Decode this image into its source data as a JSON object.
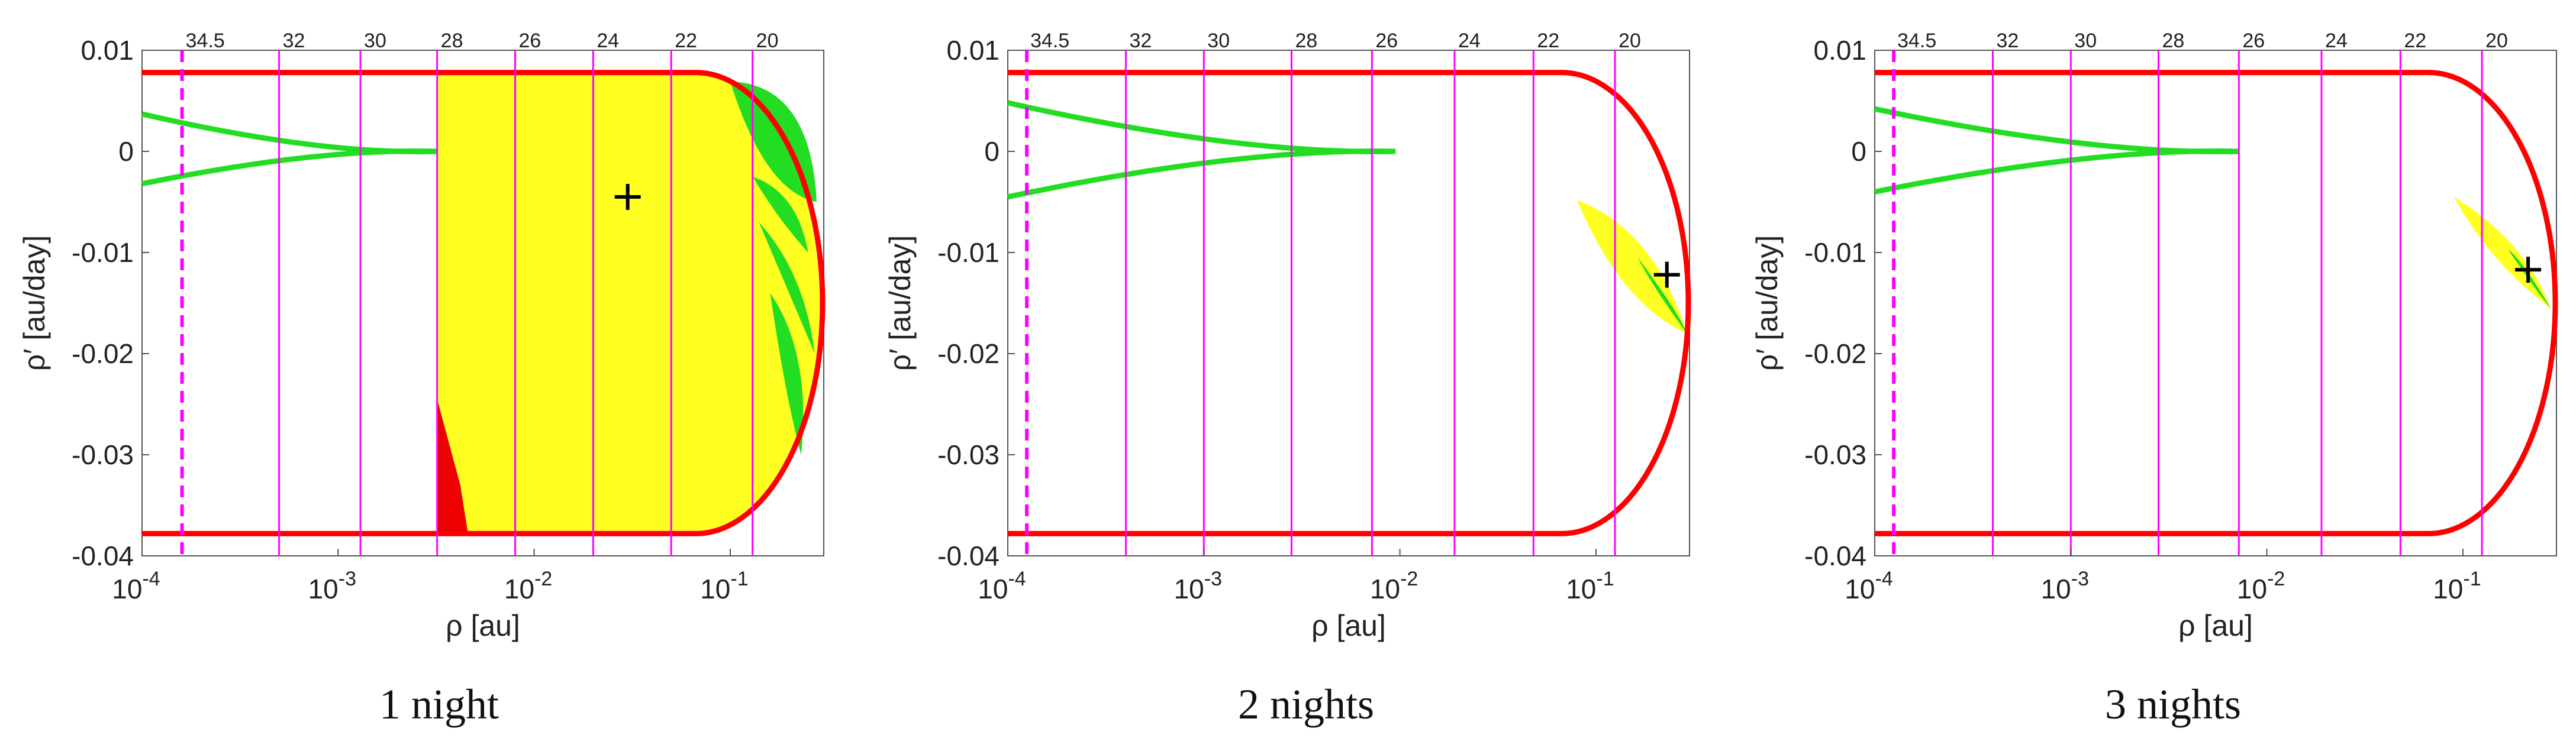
{
  "colors": {
    "boundary": "#ff0000",
    "region_yellow": "#ffff22",
    "region_green": "#22dd22",
    "region_red": "#ee0000",
    "magnitude_lines": "#ff00ff",
    "marker": "#000000"
  },
  "captions": [
    "1 night",
    "2 nights",
    "3 nights"
  ],
  "chart_data": [
    {
      "type": "scatter",
      "caption": "1 night",
      "xlabel": "ρ [au]",
      "ylabel": "ρ′ [au/day]",
      "xscale": "log",
      "xlim": [
        0.0001,
        0.3
      ],
      "ylim": [
        -0.04,
        0.01
      ],
      "xticks": [
        "10^-4",
        "10^-3",
        "10^-2",
        "10^-1"
      ],
      "yticks": [
        "0.01",
        "0",
        "-0.01",
        "-0.02",
        "-0.03",
        "-0.04"
      ],
      "magnitude_lines": [
        {
          "label": "34.5",
          "x": 0.00016,
          "style": "dashed"
        },
        {
          "label": "32",
          "x": 0.0005,
          "style": "solid"
        },
        {
          "label": "30",
          "x": 0.0013,
          "style": "solid"
        },
        {
          "label": "28",
          "x": 0.0032,
          "style": "solid"
        },
        {
          "label": "26",
          "x": 0.008,
          "style": "solid"
        },
        {
          "label": "24",
          "x": 0.02,
          "style": "solid"
        },
        {
          "label": "22",
          "x": 0.05,
          "style": "solid"
        },
        {
          "label": "20",
          "x": 0.13,
          "style": "solid"
        }
      ],
      "boundary": {
        "top": 0.0078,
        "bottom": -0.0378,
        "x_right": 0.3
      },
      "green_cusp": {
        "x_tip": 0.0032,
        "y_tip": 0.0,
        "y_left_top": 0.0037,
        "y_left_bottom": -0.0032
      },
      "region_yellow": {
        "x_min": 0.0032,
        "x_max": 0.3
      },
      "marker": {
        "x": 0.03,
        "y": -0.0045
      }
    },
    {
      "type": "scatter",
      "caption": "2 nights",
      "xlabel": "ρ [au]",
      "ylabel": "ρ′ [au/day]",
      "xscale": "log",
      "xlim": [
        0.0001,
        0.3
      ],
      "ylim": [
        -0.04,
        0.01
      ],
      "xticks": [
        "10^-4",
        "10^-3",
        "10^-2",
        "10^-1"
      ],
      "yticks": [
        "0.01",
        "0",
        "-0.01",
        "-0.02",
        "-0.03",
        "-0.04"
      ],
      "magnitude_lines": [
        {
          "label": "34.5",
          "x": 0.000125,
          "style": "dashed"
        },
        {
          "label": "32",
          "x": 0.0004,
          "style": "solid"
        },
        {
          "label": "30",
          "x": 0.001,
          "style": "solid"
        },
        {
          "label": "28",
          "x": 0.0028,
          "style": "solid"
        },
        {
          "label": "26",
          "x": 0.0072,
          "style": "solid"
        },
        {
          "label": "24",
          "x": 0.019,
          "style": "solid"
        },
        {
          "label": "22",
          "x": 0.048,
          "style": "solid"
        },
        {
          "label": "20",
          "x": 0.125,
          "style": "solid"
        }
      ],
      "boundary": {
        "top": 0.0078,
        "bottom": -0.0378,
        "x_right": 0.3
      },
      "green_cusp": {
        "x_tip": 0.0095,
        "y_tip": 0.0,
        "y_left_top": 0.0048,
        "y_left_bottom": -0.0045
      },
      "region_blob": {
        "x_start": 0.08,
        "y_start": -0.0048,
        "x_end": 0.29,
        "y_end": -0.018,
        "width": 0.003
      },
      "marker": {
        "x": 0.23,
        "y": -0.0122
      }
    },
    {
      "type": "scatter",
      "caption": "3 nights",
      "xlabel": "ρ [au]",
      "ylabel": "ρ′ [au/day]",
      "xscale": "log",
      "xlim": [
        0.0001,
        0.3
      ],
      "ylim": [
        -0.04,
        0.01
      ],
      "xticks": [
        "10^-4",
        "10^-3",
        "10^-2",
        "10^-1"
      ],
      "yticks": [
        "0.01",
        "0",
        "-0.01",
        "-0.02",
        "-0.03",
        "-0.04"
      ],
      "magnitude_lines": [
        {
          "label": "34.5",
          "x": 0.000125,
          "style": "dashed"
        },
        {
          "label": "32",
          "x": 0.0004,
          "style": "solid"
        },
        {
          "label": "30",
          "x": 0.001,
          "style": "solid"
        },
        {
          "label": "28",
          "x": 0.0028,
          "style": "solid"
        },
        {
          "label": "26",
          "x": 0.0072,
          "style": "solid"
        },
        {
          "label": "24",
          "x": 0.019,
          "style": "solid"
        },
        {
          "label": "22",
          "x": 0.048,
          "style": "solid"
        },
        {
          "label": "20",
          "x": 0.125,
          "style": "solid"
        }
      ],
      "boundary": {
        "top": 0.0078,
        "bottom": -0.0378,
        "x_right": 0.3
      },
      "green_cusp": {
        "x_tip": 0.0072,
        "y_tip": 0.0,
        "y_left_top": 0.0042,
        "y_left_bottom": -0.004
      },
      "region_blob": {
        "x_start": 0.09,
        "y_start": -0.0045,
        "x_end": 0.28,
        "y_end": -0.0155,
        "width": 0.0009
      },
      "marker": {
        "x": 0.215,
        "y": -0.0117
      }
    }
  ]
}
